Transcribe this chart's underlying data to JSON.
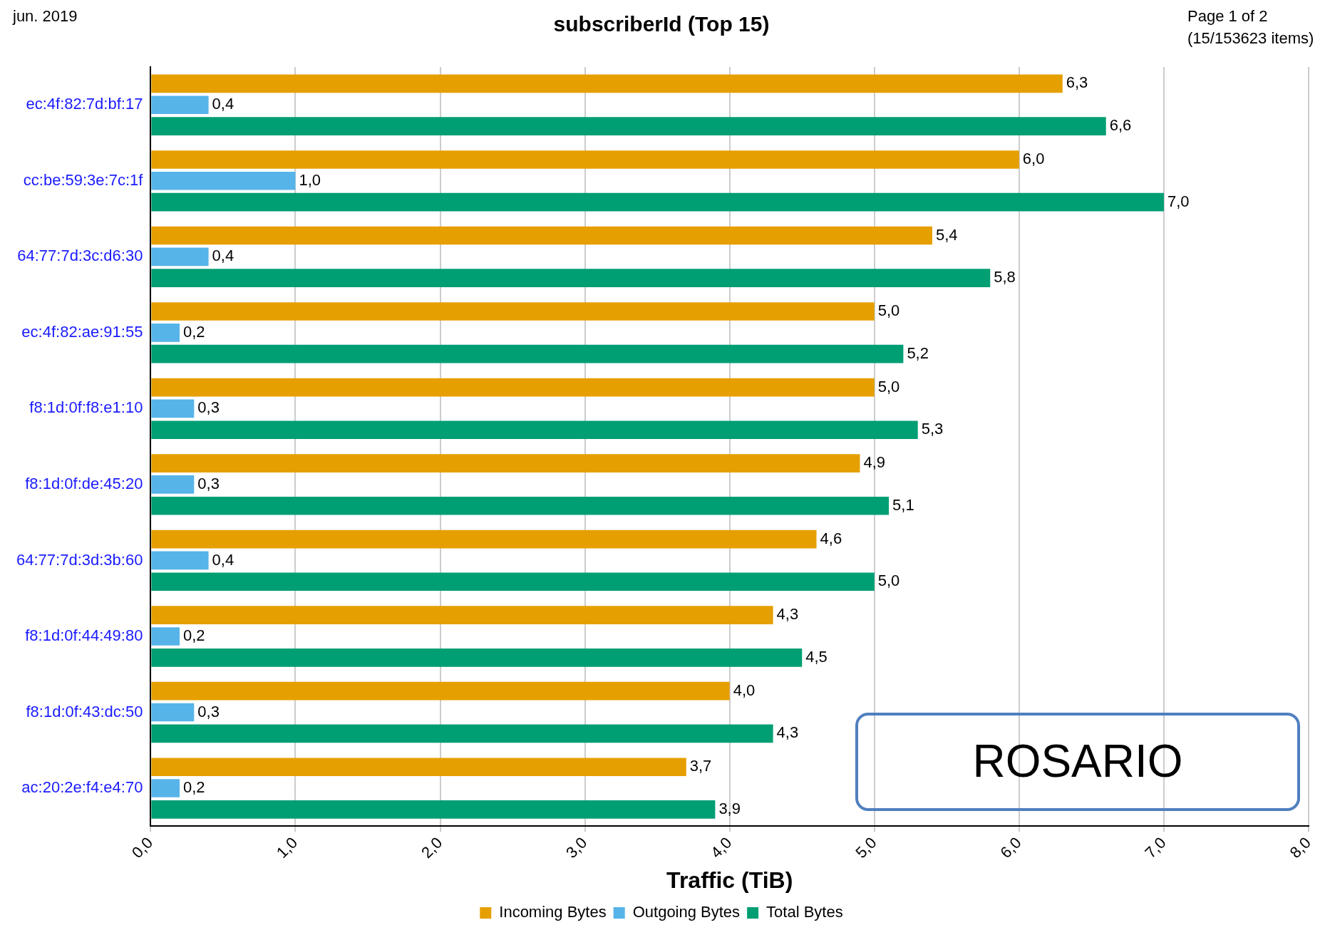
{
  "chart_data": {
    "type": "bar",
    "orientation": "horizontal",
    "title": "subscriberId (Top 15)",
    "xlabel": "Traffic (TiB)",
    "categories": [
      "ec:4f:82:7d:bf:17",
      "cc:be:59:3e:7c:1f",
      "64:77:7d:3c:d6:30",
      "ec:4f:82:ae:91:55",
      "f8:1d:0f:f8:e1:10",
      "f8:1d:0f:de:45:20",
      "64:77:7d:3d:3b:60",
      "f8:1d:0f:44:49:80",
      "f8:1d:0f:43:dc:50",
      "ac:20:2e:f4:e4:70"
    ],
    "series": [
      {
        "name": "Incoming Bytes",
        "color": "#e69f00",
        "values": [
          6.3,
          6.0,
          5.4,
          5.0,
          5.0,
          4.9,
          4.6,
          4.3,
          4.0,
          3.7
        ],
        "value_labels": [
          "6,3",
          "6,0",
          "5,4",
          "5,0",
          "5,0",
          "4,9",
          "4,6",
          "4,3",
          "4,0",
          "3,7"
        ]
      },
      {
        "name": "Outgoing Bytes",
        "color": "#56b4e9",
        "values": [
          0.4,
          1.0,
          0.4,
          0.2,
          0.3,
          0.3,
          0.4,
          0.2,
          0.3,
          0.2
        ],
        "value_labels": [
          "0,4",
          "1,0",
          "0,4",
          "0,2",
          "0,3",
          "0,3",
          "0,4",
          "0,2",
          "0,3",
          "0,2"
        ]
      },
      {
        "name": "Total Bytes",
        "color": "#009e73",
        "values": [
          6.6,
          7.0,
          5.8,
          5.2,
          5.3,
          5.1,
          5.0,
          4.5,
          4.3,
          3.9
        ],
        "value_labels": [
          "6,6",
          "7,0",
          "5,8",
          "5,2",
          "5,3",
          "5,1",
          "5,0",
          "4,5",
          "4,3",
          "3,9"
        ]
      }
    ],
    "xlim": [
      0,
      8
    ],
    "xticks": [
      {
        "value": 0,
        "label": "0,0"
      },
      {
        "value": 1,
        "label": "1,0"
      },
      {
        "value": 2,
        "label": "2,0"
      },
      {
        "value": 3,
        "label": "3,0"
      },
      {
        "value": 4,
        "label": "4,0"
      },
      {
        "value": 5,
        "label": "5,0"
      },
      {
        "value": 6,
        "label": "6,0"
      },
      {
        "value": 7,
        "label": "7,0"
      },
      {
        "value": 8,
        "label": "8,0"
      }
    ],
    "grid": "x",
    "legend": "bottom",
    "annotations": [
      "jun. 2019",
      "Page 1 of 2\n(15/153623 items)",
      "ROSARIO"
    ]
  }
}
